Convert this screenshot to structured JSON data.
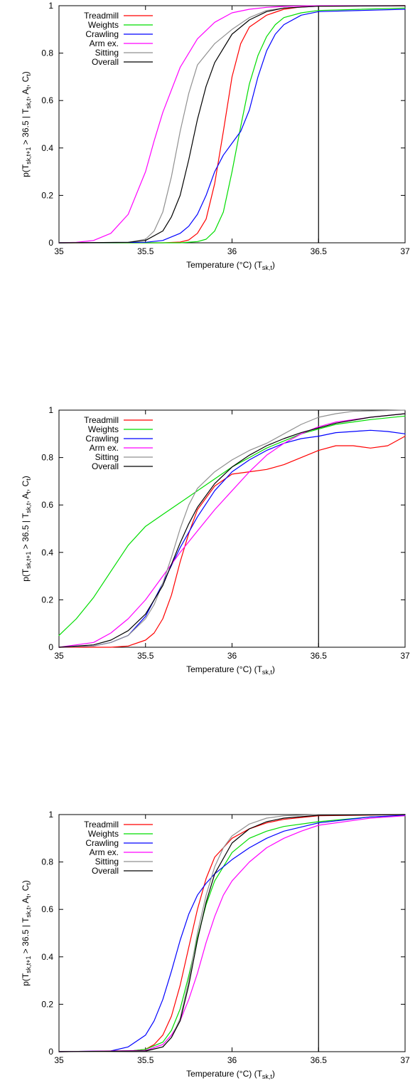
{
  "legend": [
    "Treadmill",
    "Weights",
    "Crawling",
    "Arm ex.",
    "Sitting",
    "Overall"
  ],
  "colors": {
    "Treadmill": "#ff0000",
    "Weights": "#00dd00",
    "Crawling": "#0000ff",
    "Arm ex.": "#ff00ff",
    "Sitting": "#909090",
    "Overall": "#000000",
    "threshold_line": "#000000"
  },
  "axis_text": {
    "ylabel_main": "p(T",
    "ylabel_sub1": "sk,t+1",
    "ylabel_mid1": " > 36.5 | T",
    "ylabel_sub2": "sk,t",
    "ylabel_mid2": ", A",
    "ylabel_sub3": "t",
    "ylabel_mid3": ", C",
    "ylabel_sub4": "t",
    "ylabel_end": ")",
    "xlabel_main": "Temperature (°C) (T",
    "xlabel_sub": "sk,t",
    "xlabel_end": ")"
  },
  "chart_data": [
    {
      "type": "line",
      "xlim": [
        35,
        37
      ],
      "ylim": [
        0,
        1
      ],
      "xticks": [
        35,
        35.5,
        36,
        36.5,
        37
      ],
      "xtick_labels": [
        "35",
        "35.5",
        "36",
        "36.5",
        "37"
      ],
      "yticks": [
        0,
        0.2,
        0.4,
        0.6,
        0.8,
        1
      ],
      "ytick_labels": [
        "0",
        "0.2",
        "0.4",
        "0.6",
        "0.8",
        "1"
      ],
      "vline": 36.5,
      "legend_position": "top-left",
      "series": [
        {
          "name": "Treadmill",
          "x": [
            35.0,
            35.6,
            35.7,
            35.75,
            35.8,
            35.85,
            35.9,
            35.95,
            36.0,
            36.05,
            36.1,
            36.2,
            36.3,
            36.4,
            36.5,
            37.0
          ],
          "y": [
            0.0,
            0.0,
            0.003,
            0.012,
            0.04,
            0.1,
            0.25,
            0.47,
            0.7,
            0.84,
            0.91,
            0.96,
            0.985,
            0.995,
            0.998,
            1.0
          ]
        },
        {
          "name": "Weights",
          "x": [
            35.0,
            35.7,
            35.8,
            35.85,
            35.9,
            35.95,
            36.0,
            36.05,
            36.1,
            36.15,
            36.2,
            36.25,
            36.3,
            36.4,
            36.5,
            37.0
          ],
          "y": [
            0.0,
            0.0,
            0.005,
            0.015,
            0.05,
            0.13,
            0.3,
            0.49,
            0.67,
            0.79,
            0.87,
            0.92,
            0.95,
            0.97,
            0.98,
            0.99
          ]
        },
        {
          "name": "Crawling",
          "x": [
            35.0,
            35.5,
            35.6,
            35.7,
            35.75,
            35.8,
            35.85,
            35.9,
            35.95,
            36.0,
            36.05,
            36.1,
            36.15,
            36.2,
            36.25,
            36.3,
            36.4,
            36.5,
            37.0
          ],
          "y": [
            0.0,
            0.002,
            0.01,
            0.04,
            0.07,
            0.12,
            0.2,
            0.3,
            0.37,
            0.42,
            0.47,
            0.56,
            0.7,
            0.81,
            0.88,
            0.92,
            0.96,
            0.975,
            0.985
          ]
        },
        {
          "name": "Arm ex.",
          "x": [
            35.0,
            35.1,
            35.2,
            35.3,
            35.4,
            35.5,
            35.55,
            35.6,
            35.7,
            35.8,
            35.9,
            36.0,
            36.1,
            36.2,
            36.3,
            36.5,
            37.0
          ],
          "y": [
            0.0,
            0.002,
            0.01,
            0.04,
            0.12,
            0.3,
            0.43,
            0.55,
            0.74,
            0.86,
            0.93,
            0.97,
            0.985,
            0.993,
            0.997,
            1.0,
            1.0
          ]
        },
        {
          "name": "Sitting",
          "x": [
            35.0,
            35.4,
            35.5,
            35.55,
            35.6,
            35.65,
            35.7,
            35.75,
            35.8,
            35.9,
            36.0,
            36.1,
            36.2,
            36.3,
            36.5,
            37.0
          ],
          "y": [
            0.0,
            0.002,
            0.015,
            0.05,
            0.13,
            0.28,
            0.47,
            0.63,
            0.75,
            0.84,
            0.9,
            0.95,
            0.98,
            0.99,
            0.998,
            1.0
          ]
        },
        {
          "name": "Overall",
          "x": [
            35.0,
            35.4,
            35.5,
            35.6,
            35.65,
            35.7,
            35.75,
            35.8,
            35.85,
            35.9,
            36.0,
            36.1,
            36.2,
            36.3,
            36.5,
            37.0
          ],
          "y": [
            0.0,
            0.002,
            0.01,
            0.05,
            0.11,
            0.2,
            0.35,
            0.52,
            0.66,
            0.76,
            0.88,
            0.94,
            0.975,
            0.99,
            0.998,
            1.0
          ]
        }
      ]
    },
    {
      "type": "line",
      "xlim": [
        35,
        37
      ],
      "ylim": [
        0,
        1
      ],
      "xticks": [
        35,
        35.5,
        36,
        36.5,
        37
      ],
      "xtick_labels": [
        "35",
        "35.5",
        "36",
        "36.5",
        "37"
      ],
      "yticks": [
        0,
        0.2,
        0.4,
        0.6,
        0.8,
        1
      ],
      "ytick_labels": [
        "0",
        "0.2",
        "0.4",
        "0.6",
        "0.8",
        "1"
      ],
      "vline": 36.5,
      "legend_position": "top-left",
      "series": [
        {
          "name": "Treadmill",
          "x": [
            35.0,
            35.3,
            35.4,
            35.5,
            35.55,
            35.6,
            35.65,
            35.7,
            35.75,
            35.8,
            35.9,
            36.0,
            36.1,
            36.2,
            36.3,
            36.4,
            36.5,
            36.6,
            36.7,
            36.8,
            36.9,
            37.0
          ],
          "y": [
            0.0,
            0.0,
            0.005,
            0.03,
            0.06,
            0.12,
            0.22,
            0.36,
            0.48,
            0.58,
            0.68,
            0.73,
            0.74,
            0.75,
            0.77,
            0.8,
            0.83,
            0.85,
            0.85,
            0.84,
            0.85,
            0.89
          ]
        },
        {
          "name": "Weights",
          "x": [
            35.0,
            35.1,
            35.2,
            35.3,
            35.4,
            35.5,
            35.6,
            35.7,
            35.8,
            35.9,
            36.0,
            36.1,
            36.2,
            36.3,
            36.4,
            36.5,
            36.6,
            36.8,
            37.0
          ],
          "y": [
            0.05,
            0.12,
            0.21,
            0.32,
            0.43,
            0.51,
            0.56,
            0.61,
            0.66,
            0.71,
            0.76,
            0.8,
            0.84,
            0.87,
            0.9,
            0.92,
            0.94,
            0.96,
            0.975
          ]
        },
        {
          "name": "Crawling",
          "x": [
            35.0,
            35.2,
            35.3,
            35.4,
            35.5,
            35.6,
            35.7,
            35.8,
            35.9,
            36.0,
            36.1,
            36.2,
            36.3,
            36.4,
            36.5,
            36.6,
            36.7,
            36.8,
            36.9,
            37.0
          ],
          "y": [
            0.0,
            0.005,
            0.02,
            0.05,
            0.13,
            0.27,
            0.42,
            0.55,
            0.66,
            0.74,
            0.79,
            0.83,
            0.86,
            0.88,
            0.89,
            0.905,
            0.91,
            0.915,
            0.91,
            0.9
          ]
        },
        {
          "name": "Arm ex.",
          "x": [
            35.0,
            35.2,
            35.3,
            35.4,
            35.5,
            35.6,
            35.7,
            35.8,
            35.9,
            36.0,
            36.1,
            36.2,
            36.3,
            36.4,
            36.5,
            36.6,
            36.8,
            37.0
          ],
          "y": [
            0.0,
            0.02,
            0.06,
            0.12,
            0.2,
            0.3,
            0.4,
            0.49,
            0.58,
            0.66,
            0.74,
            0.81,
            0.86,
            0.9,
            0.93,
            0.95,
            0.97,
            0.985
          ]
        },
        {
          "name": "Sitting",
          "x": [
            35.0,
            35.2,
            35.3,
            35.4,
            35.5,
            35.55,
            35.6,
            35.65,
            35.7,
            35.75,
            35.8,
            35.9,
            36.0,
            36.1,
            36.2,
            36.3,
            36.4,
            36.5,
            36.6,
            36.7,
            37.0
          ],
          "y": [
            0.0,
            0.005,
            0.02,
            0.05,
            0.12,
            0.18,
            0.27,
            0.38,
            0.5,
            0.6,
            0.67,
            0.74,
            0.79,
            0.83,
            0.86,
            0.9,
            0.94,
            0.97,
            0.985,
            0.995,
            1.0
          ]
        },
        {
          "name": "Overall",
          "x": [
            35.0,
            35.2,
            35.3,
            35.4,
            35.5,
            35.6,
            35.65,
            35.7,
            35.75,
            35.8,
            35.9,
            36.0,
            36.1,
            36.2,
            36.3,
            36.4,
            36.5,
            36.6,
            36.8,
            37.0
          ],
          "y": [
            0.0,
            0.01,
            0.03,
            0.07,
            0.14,
            0.26,
            0.35,
            0.44,
            0.52,
            0.59,
            0.69,
            0.76,
            0.81,
            0.85,
            0.88,
            0.905,
            0.925,
            0.945,
            0.97,
            0.985
          ]
        }
      ]
    },
    {
      "type": "line",
      "xlim": [
        35,
        37
      ],
      "ylim": [
        0,
        1
      ],
      "xticks": [
        35,
        35.5,
        36,
        36.5,
        37
      ],
      "xtick_labels": [
        "35",
        "35.5",
        "36",
        "36.5",
        "37"
      ],
      "yticks": [
        0,
        0.2,
        0.4,
        0.6,
        0.8,
        1
      ],
      "ytick_labels": [
        "0",
        "0.2",
        "0.4",
        "0.6",
        "0.8",
        "1"
      ],
      "vline": 36.5,
      "legend_position": "top-left",
      "series": [
        {
          "name": "Treadmill",
          "x": [
            35.0,
            35.4,
            35.5,
            35.55,
            35.6,
            35.65,
            35.7,
            35.75,
            35.8,
            35.85,
            35.9,
            36.0,
            36.1,
            36.2,
            36.3,
            36.5,
            37.0
          ],
          "y": [
            0.0,
            0.002,
            0.01,
            0.03,
            0.07,
            0.15,
            0.28,
            0.44,
            0.6,
            0.73,
            0.82,
            0.9,
            0.94,
            0.965,
            0.98,
            0.995,
            1.0
          ]
        },
        {
          "name": "Weights",
          "x": [
            35.0,
            35.4,
            35.5,
            35.6,
            35.65,
            35.7,
            35.75,
            35.8,
            35.85,
            35.9,
            36.0,
            36.1,
            36.2,
            36.3,
            36.5,
            36.8,
            37.0
          ],
          "y": [
            0.0,
            0.002,
            0.01,
            0.04,
            0.09,
            0.18,
            0.32,
            0.48,
            0.62,
            0.72,
            0.84,
            0.9,
            0.93,
            0.95,
            0.97,
            0.99,
            0.995
          ]
        },
        {
          "name": "Crawling",
          "x": [
            35.0,
            35.3,
            35.4,
            35.5,
            35.55,
            35.6,
            35.65,
            35.7,
            35.75,
            35.8,
            35.85,
            35.9,
            36.0,
            36.1,
            36.2,
            36.3,
            36.5,
            36.8,
            37.0
          ],
          "y": [
            0.0,
            0.003,
            0.02,
            0.07,
            0.13,
            0.22,
            0.34,
            0.47,
            0.58,
            0.66,
            0.71,
            0.75,
            0.81,
            0.86,
            0.9,
            0.93,
            0.965,
            0.99,
            0.997
          ]
        },
        {
          "name": "Arm ex.",
          "x": [
            35.0,
            35.5,
            35.6,
            35.65,
            35.7,
            35.75,
            35.8,
            35.85,
            35.9,
            35.95,
            36.0,
            36.1,
            36.2,
            36.3,
            36.4,
            36.5,
            36.8,
            37.0
          ],
          "y": [
            0.0,
            0.005,
            0.03,
            0.07,
            0.13,
            0.22,
            0.33,
            0.46,
            0.57,
            0.66,
            0.72,
            0.8,
            0.86,
            0.9,
            0.93,
            0.955,
            0.985,
            0.995
          ]
        },
        {
          "name": "Sitting",
          "x": [
            35.0,
            35.5,
            35.6,
            35.65,
            35.7,
            35.75,
            35.8,
            35.85,
            35.9,
            35.95,
            36.0,
            36.1,
            36.2,
            36.3,
            36.5,
            37.0
          ],
          "y": [
            0.0,
            0.002,
            0.02,
            0.06,
            0.14,
            0.3,
            0.5,
            0.66,
            0.78,
            0.86,
            0.91,
            0.96,
            0.985,
            0.995,
            1.0,
            1.0
          ]
        },
        {
          "name": "Overall",
          "x": [
            35.0,
            35.5,
            35.6,
            35.65,
            35.7,
            35.75,
            35.8,
            35.85,
            35.9,
            36.0,
            36.1,
            36.2,
            36.3,
            36.5,
            37.0
          ],
          "y": [
            0.0,
            0.003,
            0.02,
            0.06,
            0.13,
            0.28,
            0.47,
            0.63,
            0.75,
            0.88,
            0.94,
            0.97,
            0.985,
            0.997,
            1.0
          ]
        }
      ]
    }
  ]
}
